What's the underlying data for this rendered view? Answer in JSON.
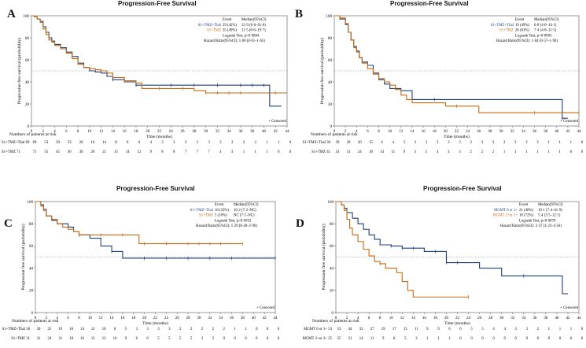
{
  "chart_data": [
    {
      "panel": "A",
      "type": "line",
      "title": "Progression-Free Survival",
      "xlabel": "Time (months)",
      "ylabel": "Progression free survival (probability)",
      "xlim": [
        0,
        44
      ],
      "ylim": [
        0,
        100
      ],
      "xticks": [
        0,
        2,
        4,
        6,
        8,
        10,
        12,
        14,
        16,
        18,
        20,
        22,
        24,
        26,
        28,
        30,
        32,
        34,
        36,
        38,
        40,
        42,
        44
      ],
      "yticks": [
        0,
        20,
        40,
        60,
        80,
        100
      ],
      "ref_line": 50,
      "legend": {
        "header_event": "Event",
        "header_median": "Median(95%CI)",
        "rows": [
          {
            "label": "S1+TMZ+Thal",
            "event": "29 (42%)",
            "median": "12·9 (6·6–41·0)",
            "color": "#1f3f7a"
          },
          {
            "label": "S1+TMZ",
            "event": "35 (49%)",
            "median": "11·5 (6·6–19·7)",
            "color": "#c46a12"
          }
        ],
        "logrank": "Logrank Test, p=0·9864",
        "hr": "Hazard Ratio(95%CI): 1·00 (0·61–1·65)"
      },
      "censored_label": "Censored",
      "risk_title": "Numbers of patients at risk",
      "series": [
        {
          "name": "S1+TMZ+Thal",
          "risk_label": "S1+TMZ+Thal 69",
          "color": "#1f3f7a",
          "x": [
            0,
            0.5,
            1,
            1.5,
            2,
            2.5,
            3,
            3.5,
            4,
            5,
            6,
            7,
            8,
            9,
            10,
            11,
            12,
            13,
            14,
            16,
            18,
            20,
            22,
            24,
            26,
            28,
            30,
            32,
            34,
            36,
            38,
            40,
            41,
            42,
            43
          ],
          "y": [
            100,
            99,
            97,
            95,
            90,
            85,
            80,
            77,
            74,
            71,
            67,
            63,
            57,
            53,
            50,
            49,
            48,
            45,
            42,
            40,
            37,
            37,
            37,
            37,
            37,
            37,
            37,
            37,
            37,
            37,
            37,
            37,
            18,
            18,
            18
          ],
          "censor_x": [
            14,
            18,
            24,
            28,
            32,
            36,
            38,
            40
          ],
          "risk": [
            69,
            53,
            39,
            33,
            20,
            16,
            14,
            11,
            8,
            6,
            4,
            3,
            3,
            3,
            3,
            3,
            3,
            3,
            2,
            2,
            1,
            1,
            0
          ]
        },
        {
          "name": "S1+TMZ",
          "risk_label": "S1+TMZ 71",
          "color": "#c46a12",
          "x": [
            0,
            0.5,
            1,
            1.5,
            2,
            2.5,
            3,
            3.5,
            4,
            5,
            6,
            7,
            8,
            9,
            10,
            11,
            12,
            13,
            14,
            16,
            18,
            19,
            20,
            22,
            24,
            26,
            28,
            30,
            32,
            34,
            36,
            38,
            40,
            42,
            44
          ],
          "y": [
            100,
            99,
            97,
            94,
            88,
            83,
            78,
            76,
            73,
            70,
            66,
            61,
            56,
            53,
            52,
            51,
            50,
            48,
            44,
            41,
            39,
            34,
            34,
            34,
            34,
            34,
            32,
            30,
            30,
            30,
            30,
            30,
            30,
            30,
            30
          ],
          "censor_x": [
            12,
            16,
            22,
            26,
            30,
            32,
            34,
            36,
            42
          ],
          "risk": [
            71,
            55,
            45,
            36,
            30,
            26,
            21,
            15,
            14,
            12,
            9,
            8,
            8,
            7,
            7,
            7,
            4,
            3,
            1,
            1,
            1,
            0,
            0
          ]
        }
      ]
    },
    {
      "panel": "B",
      "type": "line",
      "title": "Progression-Free Survival",
      "xlabel": "Time (months)",
      "ylabel": "Progression free survival (probability)",
      "xlim": [
        0,
        44
      ],
      "ylim": [
        0,
        100
      ],
      "xticks": [
        0,
        2,
        4,
        6,
        8,
        10,
        12,
        14,
        16,
        18,
        20,
        22,
        24,
        26,
        28,
        30,
        32,
        34,
        36,
        38,
        40,
        42,
        44
      ],
      "yticks": [
        0,
        20,
        40,
        60,
        80,
        100
      ],
      "ref_line": 50,
      "legend": {
        "header_event": "Event",
        "header_median": "Median(95%CI)",
        "rows": [
          {
            "label": "S1+TMZ+Thal",
            "event": "19 (49%)",
            "median": "6·8 (4·0–14·1)",
            "color": "#1f3f7a"
          },
          {
            "label": "S1+TMZ",
            "event": "26 (63%)",
            "median": "7·4 (4·8–11·5)",
            "color": "#c46a12"
          }
        ],
        "logrank": "Logrank Test, p=0·8993",
        "hr": "Hazard Ratio(95%CI): 1·04 (0·57–1·90)"
      },
      "censored_label": "Censored",
      "risk_title": "Numbers of patients at risk",
      "series": [
        {
          "name": "S1+TMZ+Thal",
          "risk_label": "S1+TMZ+Thal 39",
          "color": "#1f3f7a",
          "x": [
            0,
            1,
            2,
            2.5,
            3,
            3.5,
            4,
            4.5,
            5,
            6,
            7,
            8,
            9,
            10,
            12,
            14,
            18,
            20,
            24,
            28,
            32,
            36,
            40,
            41,
            42
          ],
          "y": [
            100,
            97,
            92,
            85,
            78,
            72,
            68,
            62,
            58,
            55,
            48,
            42,
            38,
            34,
            32,
            24,
            24,
            24,
            24,
            24,
            24,
            24,
            24,
            7,
            7
          ],
          "censor_x": [
            18,
            41
          ],
          "risk": [
            39,
            28,
            20,
            15,
            6,
            4,
            3,
            3,
            3,
            3,
            3,
            3,
            3,
            3,
            3,
            3,
            3,
            3,
            3,
            1,
            1,
            1,
            0
          ]
        },
        {
          "name": "S1+TMZ",
          "risk_label": "S1+TMZ 41",
          "color": "#c46a12",
          "x": [
            0,
            1,
            2,
            2.5,
            3,
            3.5,
            4,
            4.5,
            5,
            6,
            7,
            8,
            9,
            10,
            11,
            12,
            13,
            14,
            18,
            20,
            26,
            28,
            32,
            36,
            40,
            44
          ],
          "y": [
            100,
            98,
            93,
            85,
            78,
            71,
            67,
            62,
            57,
            52,
            47,
            43,
            40,
            37,
            33,
            28,
            24,
            21,
            21,
            18,
            12,
            12,
            12,
            12,
            12,
            12
          ],
          "censor_x": [
            22,
            36,
            44
          ],
          "risk": [
            41,
            31,
            24,
            18,
            14,
            11,
            9,
            5,
            5,
            4,
            3,
            3,
            2,
            2,
            2,
            1,
            1,
            1,
            1,
            1,
            1,
            0,
            0
          ]
        }
      ]
    },
    {
      "panel": "C",
      "type": "line",
      "title": "Progression-Free Survival",
      "xlabel": "Time (months)",
      "ylabel": "Progression free survival (probability)",
      "xlim": [
        0,
        44
      ],
      "ylim": [
        0,
        100
      ],
      "xticks": [
        0,
        2,
        4,
        6,
        8,
        10,
        12,
        14,
        16,
        18,
        20,
        22,
        24,
        26,
        28,
        30,
        32,
        34,
        36,
        38,
        40,
        42,
        44
      ],
      "yticks": [
        0,
        20,
        40,
        60,
        80,
        100
      ],
      "ref_line": 50,
      "legend": {
        "header_event": "Event",
        "header_median": "Median(95%CI)",
        "rows": [
          {
            "label": "S1+TMZ+Thal",
            "event": "10 (33%)",
            "median": "16·2 (7·2–NC)",
            "color": "#1f3f7a"
          },
          {
            "label": "S1+TMZ",
            "event": "5 (16%)",
            "median": "NC (7·1–NC)",
            "color": "#c46a12"
          }
        ],
        "logrank": "Logrank Test, p=0·6932",
        "hr": "Hazard Ratio(95%CI): 1·29 (0·49–2·96)"
      },
      "censored_label": "Censored",
      "risk_title": "Numbers of patients at risk",
      "series": [
        {
          "name": "S1+TMZ+Thal",
          "risk_label": "S1+TMZ+Thal 30",
          "color": "#1f3f7a",
          "x": [
            0,
            1,
            1.5,
            2,
            3,
            4,
            6,
            7,
            8,
            10,
            12,
            14,
            16,
            18,
            20,
            24,
            28,
            32,
            36,
            40,
            44
          ],
          "y": [
            100,
            97,
            93,
            87,
            83,
            80,
            77,
            73,
            70,
            67,
            60,
            55,
            49,
            49,
            49,
            49,
            49,
            49,
            49,
            49,
            49
          ],
          "censor_x": [
            8,
            14,
            20,
            24,
            28,
            32,
            36,
            44
          ],
          "risk": [
            30,
            25,
            19,
            18,
            14,
            12,
            10,
            8,
            5,
            3,
            3,
            3,
            3,
            2,
            2,
            2,
            2,
            2,
            1,
            1,
            0,
            0,
            0
          ]
        },
        {
          "name": "S1+TMZ",
          "risk_label": "S1+TMZ 31",
          "color": "#c46a12",
          "x": [
            0,
            1,
            1.5,
            2,
            3,
            4,
            5,
            6,
            7,
            8,
            10,
            12,
            14,
            16,
            18,
            19,
            20,
            24,
            28,
            32,
            36,
            38
          ],
          "y": [
            100,
            96,
            92,
            87,
            84,
            80,
            77,
            75,
            73,
            70,
            70,
            70,
            70,
            70,
            70,
            62,
            62,
            62,
            62,
            62,
            62,
            62
          ],
          "censor_x": [
            8,
            12,
            16,
            20,
            24,
            28,
            30,
            32,
            34,
            38
          ],
          "risk": [
            31,
            24,
            21,
            18,
            16,
            15,
            12,
            10,
            9,
            6,
            6,
            5,
            5,
            5,
            5,
            3,
            2,
            0,
            0,
            0,
            0,
            0,
            0
          ]
        }
      ]
    },
    {
      "panel": "D",
      "type": "line",
      "title": "Progression-Free Survival",
      "xlabel": "Time (months)",
      "ylabel": "Progression free survival (probability)",
      "xlim": [
        0,
        44
      ],
      "ylim": [
        0,
        100
      ],
      "xticks": [
        0,
        2,
        4,
        6,
        8,
        10,
        12,
        14,
        16,
        18,
        20,
        22,
        24,
        26,
        28,
        30,
        32,
        34,
        36,
        38,
        40,
        42,
        44
      ],
      "yticks": [
        0,
        20,
        40,
        60,
        80,
        100
      ],
      "ref_line": 50,
      "legend": {
        "header_event": "Event",
        "header_median": "Median(95%CI)",
        "rows": [
          {
            "label": "MGMT 0 or 1+",
            "event": "21 (40%)",
            "median": "19·1 (7·4–41·9)",
            "color": "#1f3f7a"
          },
          {
            "label": "MGMT 2+or 3+",
            "event": "18 (72%)",
            "median": "5·4 (3·5–12·1)",
            "color": "#c46a12"
          }
        ],
        "logrank": "Logrank Test, p=0·0076",
        "hr": "Hazard Ratio(95%CI): 2·37 (1·23–4·56)"
      },
      "censored_label": "Censored",
      "risk_title": "Numbers of patients at risk",
      "series": [
        {
          "name": "MGMT 0 or 1+",
          "risk_label": "MGMT 0 or 1+ 53",
          "color": "#1f3f7a",
          "x": [
            0,
            1,
            1.5,
            2,
            3,
            4,
            5,
            6,
            7,
            8,
            10,
            12,
            14,
            16,
            18,
            20,
            22,
            26,
            30,
            34,
            38,
            40,
            41,
            42
          ],
          "y": [
            100,
            97,
            94,
            90,
            85,
            80,
            75,
            70,
            66,
            61,
            60,
            58,
            58,
            55,
            55,
            45,
            45,
            40,
            33,
            33,
            33,
            33,
            17,
            17
          ],
          "censor_x": [
            10,
            12,
            14,
            18,
            20,
            22,
            34
          ],
          "risk": [
            53,
            44,
            33,
            27,
            19,
            17,
            15,
            11,
            9,
            9,
            6,
            6,
            5,
            5,
            4,
            4,
            3,
            3,
            2,
            1,
            1,
            1,
            0
          ]
        },
        {
          "name": "MGMT 2+or 3+",
          "risk_label": "MGMT 2+or 3+ 25",
          "color": "#c46a12",
          "x": [
            0,
            1,
            1.5,
            2,
            2.5,
            3,
            4,
            5,
            6,
            7,
            8,
            9,
            10,
            11,
            12,
            13,
            14,
            16,
            18,
            20,
            22,
            24
          ],
          "y": [
            100,
            97,
            92,
            84,
            76,
            70,
            64,
            57,
            51,
            46,
            44,
            40,
            40,
            36,
            28,
            20,
            14,
            14,
            14,
            14,
            14,
            14
          ],
          "censor_x": [
            8,
            24
          ],
          "risk": [
            25,
            21,
            14,
            11,
            9,
            8,
            5,
            3,
            1,
            1,
            1,
            0,
            0,
            0,
            0,
            0,
            0,
            0,
            0,
            0,
            0,
            0,
            0
          ]
        }
      ]
    }
  ]
}
